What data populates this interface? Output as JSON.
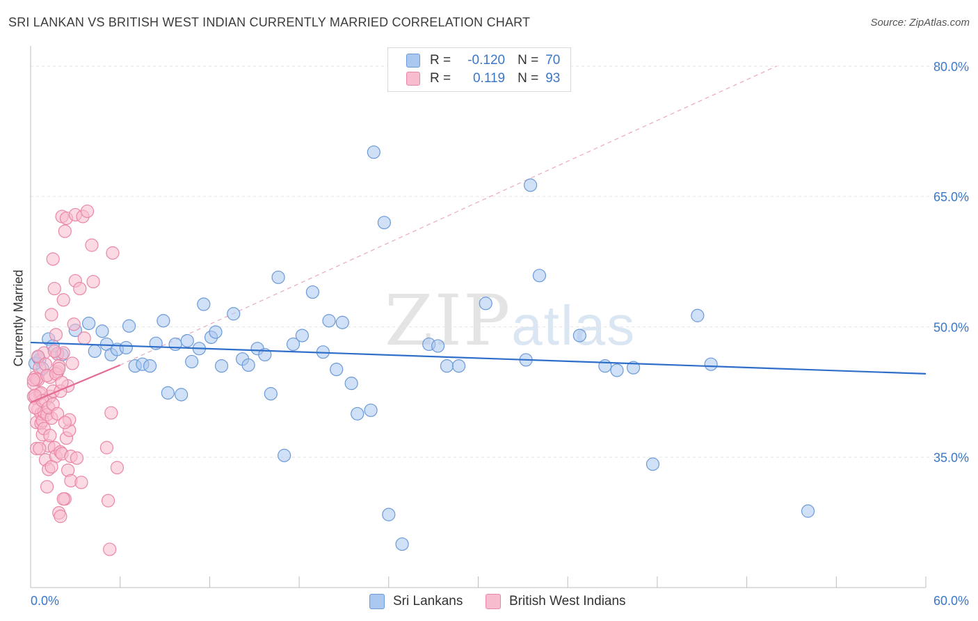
{
  "title": "SRI LANKAN VS BRITISH WEST INDIAN CURRENTLY MARRIED CORRELATION CHART",
  "source": "Source: ZipAtlas.com",
  "watermark": {
    "zip": "ZIP",
    "atlas": "atlas"
  },
  "legend": {
    "rows": [
      {
        "r_label": "R =",
        "r_value": "-0.120",
        "n_label": "N =",
        "n_value": "70",
        "color": "#a9c7ef",
        "stroke": "#6a9ad8"
      },
      {
        "r_label": "R =",
        "r_value": "0.119",
        "n_label": "N =",
        "n_value": "93",
        "color": "#f7bccd",
        "stroke": "#ea86a5"
      }
    ]
  },
  "bottom_legend": [
    "Sri Lankans",
    "British West Indians"
  ],
  "chart_data": {
    "type": "scatter",
    "title": "SRI LANKAN VS BRITISH WEST INDIAN CURRENTLY MARRIED CORRELATION CHART",
    "xlabel": "",
    "ylabel": "Currently Married",
    "xlim": [
      0,
      60
    ],
    "ylim": [
      20,
      82
    ],
    "x_tick_labels": [
      "0.0%",
      "60.0%"
    ],
    "y_ticks": [
      35,
      50,
      65,
      80
    ],
    "y_tick_labels": [
      "35.0%",
      "50.0%",
      "65.0%",
      "80.0%"
    ],
    "grid": true,
    "legend_position": "top-center",
    "series": [
      {
        "name": "Sri Lankans",
        "color": "#6a9ad8",
        "fill": "#a9c7ef",
        "trend": {
          "x": [
            0,
            60
          ],
          "y": [
            48.2,
            44.6
          ],
          "style": "solid"
        },
        "points": [
          [
            0.6,
            46.2
          ],
          [
            0.8,
            45.2
          ],
          [
            1.2,
            48.6
          ],
          [
            1.5,
            47.8
          ],
          [
            1.8,
            46.9
          ],
          [
            2.1,
            46.8
          ],
          [
            3.0,
            49.6
          ],
          [
            3.9,
            50.4
          ],
          [
            4.3,
            47.2
          ],
          [
            4.8,
            49.5
          ],
          [
            5.1,
            48.0
          ],
          [
            5.4,
            46.8
          ],
          [
            5.8,
            47.4
          ],
          [
            6.4,
            47.6
          ],
          [
            6.6,
            50.1
          ],
          [
            7.0,
            45.5
          ],
          [
            7.5,
            45.7
          ],
          [
            8.0,
            45.5
          ],
          [
            8.4,
            48.1
          ],
          [
            8.9,
            50.7
          ],
          [
            9.2,
            42.4
          ],
          [
            9.7,
            48.0
          ],
          [
            10.1,
            42.2
          ],
          [
            10.5,
            48.4
          ],
          [
            10.8,
            46.0
          ],
          [
            11.3,
            47.5
          ],
          [
            11.6,
            52.6
          ],
          [
            12.1,
            48.8
          ],
          [
            12.4,
            49.4
          ],
          [
            12.8,
            45.5
          ],
          [
            13.6,
            51.5
          ],
          [
            14.2,
            46.3
          ],
          [
            14.6,
            45.6
          ],
          [
            15.2,
            47.5
          ],
          [
            15.7,
            46.8
          ],
          [
            16.1,
            42.3
          ],
          [
            16.6,
            55.7
          ],
          [
            17.0,
            35.2
          ],
          [
            17.6,
            48.0
          ],
          [
            18.2,
            49.0
          ],
          [
            18.9,
            54.0
          ],
          [
            19.6,
            47.1
          ],
          [
            20.0,
            50.7
          ],
          [
            20.5,
            45.1
          ],
          [
            20.9,
            50.5
          ],
          [
            21.5,
            43.5
          ],
          [
            21.9,
            40.0
          ],
          [
            22.8,
            40.4
          ],
          [
            23.0,
            70.1
          ],
          [
            23.7,
            62.0
          ],
          [
            24.0,
            28.4
          ],
          [
            24.9,
            25.0
          ],
          [
            26.7,
            48.0
          ],
          [
            27.3,
            47.8
          ],
          [
            27.9,
            45.5
          ],
          [
            28.7,
            45.5
          ],
          [
            30.5,
            52.7
          ],
          [
            33.2,
            46.2
          ],
          [
            33.5,
            66.3
          ],
          [
            34.1,
            55.9
          ],
          [
            36.8,
            49.0
          ],
          [
            38.5,
            45.5
          ],
          [
            39.3,
            45.0
          ],
          [
            40.4,
            45.3
          ],
          [
            41.7,
            34.2
          ],
          [
            44.7,
            51.3
          ],
          [
            45.6,
            45.7
          ],
          [
            52.1,
            28.8
          ],
          [
            0.3,
            45.8
          ],
          [
            0.5,
            46.5
          ]
        ]
      },
      {
        "name": "British West Indians",
        "color": "#ea86a5",
        "fill": "#f7bccd",
        "trend": {
          "x": [
            0,
            6
          ],
          "y": [
            41.3,
            45.6
          ],
          "style": "solid",
          "extended": {
            "x": [
              6,
              50
            ],
            "y": [
              45.6,
              80.0
            ],
            "style": "dashed"
          }
        },
        "points": [
          [
            0.2,
            43.5
          ],
          [
            0.3,
            44.2
          ],
          [
            0.3,
            41.8
          ],
          [
            0.4,
            39.0
          ],
          [
            0.4,
            36.0
          ],
          [
            0.5,
            43.9
          ],
          [
            0.5,
            40.5
          ],
          [
            0.6,
            45.3
          ],
          [
            0.6,
            42.3
          ],
          [
            0.7,
            38.9
          ],
          [
            0.7,
            40.0
          ],
          [
            0.8,
            39.2
          ],
          [
            0.8,
            37.6
          ],
          [
            0.9,
            47.0
          ],
          [
            0.9,
            40.2
          ],
          [
            1.0,
            41.6
          ],
          [
            1.0,
            34.7
          ],
          [
            1.1,
            39.9
          ],
          [
            1.1,
            31.6
          ],
          [
            1.2,
            36.3
          ],
          [
            1.2,
            33.6
          ],
          [
            1.3,
            42.0
          ],
          [
            1.3,
            44.2
          ],
          [
            1.4,
            39.5
          ],
          [
            1.4,
            51.4
          ],
          [
            1.5,
            57.8
          ],
          [
            1.5,
            42.6
          ],
          [
            1.6,
            54.4
          ],
          [
            1.6,
            36.1
          ],
          [
            1.7,
            49.1
          ],
          [
            1.7,
            35.1
          ],
          [
            1.8,
            46.9
          ],
          [
            1.8,
            44.8
          ],
          [
            1.9,
            28.6
          ],
          [
            1.9,
            45.5
          ],
          [
            2.0,
            28.2
          ],
          [
            2.0,
            35.6
          ],
          [
            2.1,
            62.7
          ],
          [
            2.1,
            35.4
          ],
          [
            2.2,
            47.0
          ],
          [
            2.2,
            53.1
          ],
          [
            2.3,
            61.0
          ],
          [
            2.3,
            30.2
          ],
          [
            2.4,
            37.2
          ],
          [
            2.4,
            62.5
          ],
          [
            2.5,
            43.2
          ],
          [
            2.5,
            33.5
          ],
          [
            2.6,
            38.1
          ],
          [
            2.6,
            39.3
          ],
          [
            2.7,
            35.1
          ],
          [
            2.7,
            32.3
          ],
          [
            2.8,
            45.8
          ],
          [
            2.9,
            50.3
          ],
          [
            3.0,
            62.9
          ],
          [
            3.0,
            55.3
          ],
          [
            3.1,
            34.9
          ],
          [
            3.3,
            54.4
          ],
          [
            3.4,
            32.1
          ],
          [
            3.5,
            62.7
          ],
          [
            3.6,
            48.7
          ],
          [
            3.8,
            63.3
          ],
          [
            4.1,
            59.4
          ],
          [
            4.2,
            55.2
          ],
          [
            5.1,
            36.1
          ],
          [
            5.2,
            30.0
          ],
          [
            5.3,
            24.4
          ],
          [
            5.4,
            40.1
          ],
          [
            5.5,
            58.5
          ],
          [
            5.8,
            33.8
          ],
          [
            0.2,
            42.0
          ],
          [
            0.3,
            40.7
          ],
          [
            0.4,
            44.0
          ],
          [
            0.5,
            46.6
          ],
          [
            0.6,
            36.0
          ],
          [
            0.7,
            42.4
          ],
          [
            0.8,
            41.5
          ],
          [
            0.9,
            38.3
          ],
          [
            1.0,
            45.7
          ],
          [
            1.1,
            44.4
          ],
          [
            1.2,
            40.7
          ],
          [
            1.3,
            37.5
          ],
          [
            1.4,
            33.9
          ],
          [
            1.5,
            41.1
          ],
          [
            1.6,
            47.2
          ],
          [
            1.7,
            44.6
          ],
          [
            1.8,
            40.0
          ],
          [
            1.9,
            45.2
          ],
          [
            2.0,
            42.6
          ],
          [
            2.1,
            43.6
          ],
          [
            2.2,
            30.2
          ],
          [
            2.3,
            39.0
          ],
          [
            0.2,
            43.9
          ],
          [
            0.3,
            42.1
          ]
        ]
      }
    ]
  }
}
